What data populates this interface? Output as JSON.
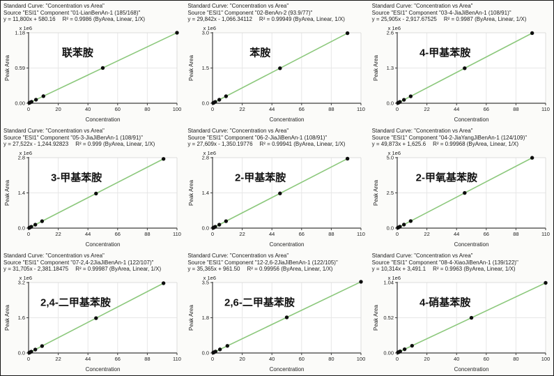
{
  "style": {
    "line_color": "#8cc87c",
    "point_color": "#0e0e0e",
    "grid_color": "#e7e7e7",
    "frame_color": "#dcdcdc",
    "axis_color": "#3c3c3c",
    "text_color": "#222222",
    "plot_bg": "#ffffff"
  },
  "chart_data": [
    {
      "type": "scatter",
      "header_title": "Standard Curve: \"Concentration vs Area\"",
      "header_source": "Source \"ESI1\" Component \"01-LianBenAn-1 (185/168)\"",
      "header_equation": "y = 11,800x + 580.16",
      "header_fit": "R² = 0.9986  (ByArea, Linear, 1/X)",
      "label": "联苯胺",
      "xlabel": "Concentration",
      "ylabel": "Peak Area",
      "scale_label": "x 1e6",
      "x": [
        0.5,
        1,
        2,
        5,
        10,
        50,
        100
      ],
      "y": [
        6480,
        12380,
        24180,
        59580,
        118580,
        590580,
        1180580
      ],
      "fit": {
        "slope": 11800,
        "intercept": 580.16,
        "r2": 0.9986,
        "fit_type": "Linear",
        "weighting": "1/X",
        "response": "ByArea"
      },
      "xlim": [
        0,
        100
      ],
      "xticks": [
        0,
        20,
        40,
        60,
        80,
        100
      ],
      "ylim": [
        0,
        1180000
      ],
      "yticks": [
        0,
        590000,
        1180000
      ],
      "ytick_labels": [
        "0.00",
        "0.59",
        "1.18"
      ]
    },
    {
      "type": "scatter",
      "header_title": "Standard Curve: \"Concentration vs Area\"",
      "header_source": "Source \"ESI1\" Component \"02-BenAn-2 (93.9/77)\"",
      "header_equation": "y = 29,842x - 1,066.34112",
      "header_fit": "R² = 0.99949  (ByArea, Linear, 1/X)",
      "label": "苯胺",
      "xlabel": "Concentration",
      "ylabel": "Peak Area",
      "scale_label": "x 1e6",
      "x": [
        0.5,
        1,
        2,
        5,
        10,
        50,
        100
      ],
      "y": [
        13855,
        28776,
        58618,
        148144,
        297354,
        1491034,
        2983134
      ],
      "fit": {
        "slope": 29842,
        "intercept": -1066.34112,
        "r2": 0.99949,
        "fit_type": "Linear",
        "weighting": "1/X",
        "response": "ByArea"
      },
      "xlim": [
        0,
        110
      ],
      "xticks": [
        0,
        22,
        44,
        66,
        88,
        110
      ],
      "ylim": [
        0,
        3000000
      ],
      "yticks": [
        0,
        1500000,
        3000000
      ],
      "ytick_labels": [
        "0.0",
        "1.5",
        "3.0"
      ]
    },
    {
      "type": "scatter",
      "header_title": "Standard Curve: \"Concentration vs Area\"",
      "header_source": "Source \"ESI1\" Component \"03-4-JiaJiBenAn-1 (108/91)\"",
      "header_equation": "y = 25,905x - 2,917.67525",
      "header_fit": "R² = 0.9987  (ByArea, Linear, 1/X)",
      "label": "4-甲基苯胺",
      "xlabel": "Concentration",
      "ylabel": "Peak Area",
      "scale_label": "x 1e6",
      "x": [
        0.5,
        1,
        2,
        5,
        10,
        50,
        100
      ],
      "y": [
        10035,
        22987,
        48892,
        126607,
        256132,
        1292332,
        2587582
      ],
      "fit": {
        "slope": 25905,
        "intercept": -2917.67525,
        "r2": 0.9987,
        "fit_type": "Linear",
        "weighting": "1/X",
        "response": "ByArea"
      },
      "xlim": [
        0,
        110
      ],
      "xticks": [
        0,
        22,
        44,
        66,
        88,
        110
      ],
      "ylim": [
        0,
        2600000
      ],
      "yticks": [
        0,
        1300000,
        2600000
      ],
      "ytick_labels": [
        "0.0",
        "1.3",
        "2.6"
      ]
    },
    {
      "type": "scatter",
      "header_title": "Standard Curve: \"Concentration vs Area\"",
      "header_source": "Source \"ESI1\" Component \"05-3-JiaJiBenAn-1 (108/91)\"",
      "header_equation": "y = 27,522x - 1,244.92823",
      "header_fit": "R² = 0.999  (ByArea, Linear, 1/X)",
      "label": "3-甲基苯胺",
      "xlabel": "Concentration",
      "ylabel": "Peak Area",
      "scale_label": "x 1e6",
      "x": [
        0.5,
        1,
        2,
        5,
        10,
        50,
        100
      ],
      "y": [
        12516,
        26277,
        53799,
        136365,
        273975,
        1374855,
        2750955
      ],
      "fit": {
        "slope": 27522,
        "intercept": -1244.92823,
        "r2": 0.999,
        "fit_type": "Linear",
        "weighting": "1/X",
        "response": "ByArea"
      },
      "xlim": [
        0,
        110
      ],
      "xticks": [
        0,
        22,
        44,
        66,
        88,
        110
      ],
      "ylim": [
        0,
        2800000
      ],
      "yticks": [
        0,
        1400000,
        2800000
      ],
      "ytick_labels": [
        "0.0",
        "1.4",
        "2.8"
      ]
    },
    {
      "type": "scatter",
      "header_title": "Standard Curve: \"Concentration vs Area\"",
      "header_source": "Source \"ESI1\" Component \"06-2-JiaJiBenAn-1 (108/91)\"",
      "header_equation": "y = 27,609x - 1,350.19776",
      "header_fit": "R² = 0.99941  (ByArea, Linear, 1/X)",
      "label": "2-甲基苯胺",
      "xlabel": "Concentration",
      "ylabel": "Peak Area",
      "scale_label": "x 1e6",
      "x": [
        0.5,
        1,
        2,
        5,
        10,
        50,
        100
      ],
      "y": [
        12454,
        26259,
        53868,
        136695,
        274740,
        1379100,
        2759550
      ],
      "fit": {
        "slope": 27609,
        "intercept": -1350.19776,
        "r2": 0.99941,
        "fit_type": "Linear",
        "weighting": "1/X",
        "response": "ByArea"
      },
      "xlim": [
        0,
        110
      ],
      "xticks": [
        0,
        22,
        44,
        66,
        88,
        110
      ],
      "ylim": [
        0,
        2800000
      ],
      "yticks": [
        0,
        1400000,
        2800000
      ],
      "ytick_labels": [
        "0.0",
        "1.4",
        "2.8"
      ]
    },
    {
      "type": "scatter",
      "header_title": "Standard Curve: \"Concentration vs Area\"",
      "header_source": "Source \"ESI1\" Component \"04-2-JiaYangJiBenAn-1 (124/109)\"",
      "header_equation": "y = 49,873x + 1,625.6",
      "header_fit": "R² = 0.99968  (ByArea, Linear, 1/X)",
      "label": "2-甲氧基苯胺",
      "xlabel": "Concentration",
      "ylabel": "Peak Area",
      "scale_label": "x 1e6",
      "x": [
        0.5,
        1,
        2,
        5,
        10,
        50,
        100
      ],
      "y": [
        26562,
        51499,
        101372,
        250991,
        500356,
        2495276,
        4988926
      ],
      "fit": {
        "slope": 49873,
        "intercept": 1625.6,
        "r2": 0.99968,
        "fit_type": "Linear",
        "weighting": "1/X",
        "response": "ByArea"
      },
      "xlim": [
        0,
        110
      ],
      "xticks": [
        0,
        22,
        44,
        66,
        88,
        110
      ],
      "ylim": [
        0,
        5000000
      ],
      "yticks": [
        0,
        2500000,
        5000000
      ],
      "ytick_labels": [
        "0.0",
        "2.5",
        "5.0"
      ]
    },
    {
      "type": "scatter",
      "header_title": "Standard Curve: \"Concentration vs Area\"",
      "header_source": "Source \"ESI1\" Component \"07-2,4-2JiaJiBenAn-1 (122/107)\"",
      "header_equation": "y = 31,705x - 2,381.18475",
      "header_fit": "R² = 0.99987  (ByArea, Linear, 1/X)",
      "label": "2,4-二甲基苯胺",
      "xlabel": "Concentration",
      "ylabel": "Peak Area",
      "scale_label": "x 1e6",
      "x": [
        0.5,
        1,
        2,
        5,
        10,
        50,
        100
      ],
      "y": [
        13471,
        29324,
        61029,
        156144,
        314669,
        1582869,
        3168119
      ],
      "fit": {
        "slope": 31705,
        "intercept": -2381.18475,
        "r2": 0.99987,
        "fit_type": "Linear",
        "weighting": "1/X",
        "response": "ByArea"
      },
      "xlim": [
        0,
        110
      ],
      "xticks": [
        0,
        22,
        44,
        66,
        88,
        110
      ],
      "ylim": [
        0,
        3200000
      ],
      "yticks": [
        0,
        1600000,
        3200000
      ],
      "ytick_labels": [
        "0.0",
        "1.6",
        "3.2"
      ]
    },
    {
      "type": "scatter",
      "header_title": "Standard Curve: \"Concentration vs Area\"",
      "header_source": "Source \"ESI1\" Component \"12-2,6-2JiaJiBenAn-1 (122/105)\"",
      "header_equation": "y = 35,365x + 961.50",
      "header_fit": "R² = 0.99956  (ByArea, Linear, 1/X)",
      "label": "2,6-二甲基苯胺",
      "xlabel": "Concentration",
      "ylabel": "Peak Area",
      "scale_label": "x 1e6",
      "x": [
        0.5,
        1,
        2,
        5,
        10,
        50,
        100
      ],
      "y": [
        18644,
        36327,
        71692,
        177787,
        354612,
        1769212,
        3537462
      ],
      "fit": {
        "slope": 35365,
        "intercept": 961.5,
        "r2": 0.99956,
        "fit_type": "Linear",
        "weighting": "1/X",
        "response": "ByArea"
      },
      "xlim": [
        0,
        100
      ],
      "xticks": [
        0,
        20,
        40,
        60,
        80,
        100
      ],
      "ylim": [
        0,
        3500000
      ],
      "yticks": [
        0,
        1750000,
        3500000
      ],
      "ytick_labels": [
        "0.0",
        "1.8",
        "3.5"
      ]
    },
    {
      "type": "scatter",
      "header_title": "Standard Curve: \"Concentration vs Area\"",
      "header_source": "Source \"ESI1\" Component \"08-4-XiaoJiBenAn-1 (139/122)\"",
      "header_equation": "y = 10,314x + 3,491.1",
      "header_fit": "R² = 0.9963  (ByArea, Linear, 1/X)",
      "label": "4-硝基苯胺",
      "xlabel": "Concentration",
      "ylabel": "Peak Area",
      "scale_label": "x 1e6",
      "x": [
        0.5,
        1,
        2,
        5,
        10,
        50,
        100
      ],
      "y": [
        8648,
        13805,
        24119,
        55061,
        106631,
        519191,
        1034891
      ],
      "fit": {
        "slope": 10314,
        "intercept": 3491.1,
        "r2": 0.9963,
        "fit_type": "Linear",
        "weighting": "1/X",
        "response": "ByArea"
      },
      "xlim": [
        0,
        100
      ],
      "xticks": [
        0,
        20,
        40,
        60,
        80,
        100
      ],
      "ylim": [
        0,
        1040000
      ],
      "yticks": [
        0,
        520000,
        1040000
      ],
      "ytick_labels": [
        "0.00",
        "0.52",
        "1.04"
      ]
    }
  ]
}
